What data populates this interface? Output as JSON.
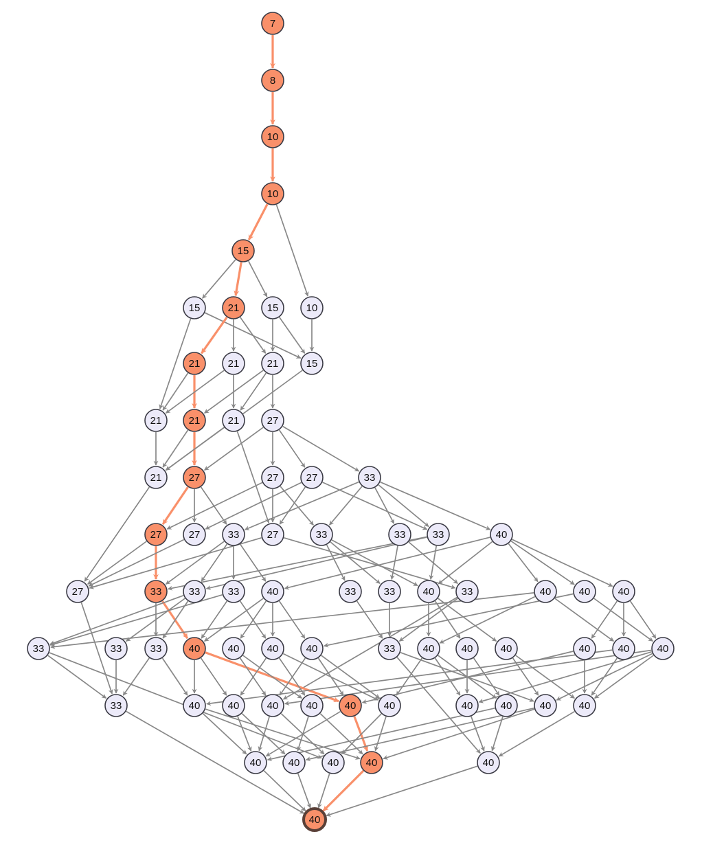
{
  "colors": {
    "highlight_node": "#f9906a",
    "normal_node": "#eceaf9",
    "node_stroke": "#3a3a44",
    "edge": "#888888",
    "highlight_edge": "#f9906a",
    "final_stroke": "#5a4038"
  },
  "nodes": [
    {
      "label": "7",
      "hl": true
    },
    {
      "label": "8",
      "hl": true
    },
    {
      "label": "10",
      "hl": true
    },
    {
      "label": "10",
      "hl": true
    },
    {
      "label": "15",
      "hl": true
    },
    {
      "label": "15"
    },
    {
      "label": "21",
      "hl": true
    },
    {
      "label": "15"
    },
    {
      "label": "10"
    },
    {
      "label": "21",
      "hl": true
    },
    {
      "label": "21"
    },
    {
      "label": "21"
    },
    {
      "label": "15"
    },
    {
      "label": "21"
    },
    {
      "label": "21",
      "hl": true
    },
    {
      "label": "21"
    },
    {
      "label": "27"
    },
    {
      "label": "21"
    },
    {
      "label": "27",
      "hl": true
    },
    {
      "label": "27"
    },
    {
      "label": "27"
    },
    {
      "label": "33"
    },
    {
      "label": "27",
      "hl": true
    },
    {
      "label": "27"
    },
    {
      "label": "33"
    },
    {
      "label": "27"
    },
    {
      "label": "33"
    },
    {
      "label": "33"
    },
    {
      "label": "33"
    },
    {
      "label": "40"
    },
    {
      "label": "27"
    },
    {
      "label": "33",
      "hl": true
    },
    {
      "label": "33"
    },
    {
      "label": "33"
    },
    {
      "label": "40"
    },
    {
      "label": "33"
    },
    {
      "label": "33"
    },
    {
      "label": "40"
    },
    {
      "label": "33"
    },
    {
      "label": "40"
    },
    {
      "label": "40"
    },
    {
      "label": "40"
    },
    {
      "label": "33"
    },
    {
      "label": "33"
    },
    {
      "label": "33"
    },
    {
      "label": "40",
      "hl": true
    },
    {
      "label": "40"
    },
    {
      "label": "40"
    },
    {
      "label": "40"
    },
    {
      "label": "33"
    },
    {
      "label": "40"
    },
    {
      "label": "40"
    },
    {
      "label": "40"
    },
    {
      "label": "40"
    },
    {
      "label": "40"
    },
    {
      "label": "40"
    },
    {
      "label": "33"
    },
    {
      "label": "40"
    },
    {
      "label": "40"
    },
    {
      "label": "40"
    },
    {
      "label": "40"
    },
    {
      "label": "40",
      "hl": true
    },
    {
      "label": "40"
    },
    {
      "label": "40"
    },
    {
      "label": "40"
    },
    {
      "label": "40"
    },
    {
      "label": "40"
    },
    {
      "label": "40"
    },
    {
      "label": "40"
    },
    {
      "label": "40"
    },
    {
      "label": "40",
      "hl": true
    },
    {
      "label": "40"
    },
    {
      "label": "40",
      "hl": true,
      "final": true
    }
  ],
  "edges": [
    [
      0,
      1,
      1
    ],
    [
      1,
      2,
      1
    ],
    [
      2,
      3,
      1
    ],
    [
      3,
      4,
      1
    ],
    [
      3,
      8
    ],
    [
      4,
      5
    ],
    [
      4,
      6,
      1
    ],
    [
      4,
      7
    ],
    [
      5,
      12
    ],
    [
      5,
      13
    ],
    [
      6,
      9,
      1
    ],
    [
      6,
      10
    ],
    [
      6,
      11
    ],
    [
      7,
      11
    ],
    [
      7,
      12
    ],
    [
      8,
      12
    ],
    [
      9,
      14,
      1
    ],
    [
      9,
      13
    ],
    [
      10,
      13
    ],
    [
      10,
      15
    ],
    [
      11,
      14
    ],
    [
      11,
      15
    ],
    [
      11,
      16
    ],
    [
      12,
      17
    ],
    [
      13,
      17
    ],
    [
      14,
      17
    ],
    [
      14,
      18,
      1
    ],
    [
      15,
      17
    ],
    [
      15,
      25
    ],
    [
      16,
      18
    ],
    [
      16,
      19
    ],
    [
      16,
      20
    ],
    [
      16,
      21
    ],
    [
      17,
      30
    ],
    [
      18,
      22,
      1
    ],
    [
      18,
      23
    ],
    [
      18,
      24
    ],
    [
      19,
      22
    ],
    [
      19,
      25
    ],
    [
      19,
      26
    ],
    [
      20,
      23
    ],
    [
      20,
      25
    ],
    [
      20,
      28
    ],
    [
      21,
      24
    ],
    [
      21,
      26
    ],
    [
      21,
      27
    ],
    [
      21,
      28
    ],
    [
      21,
      29
    ],
    [
      22,
      30
    ],
    [
      22,
      31,
      1
    ],
    [
      23,
      30
    ],
    [
      24,
      31
    ],
    [
      24,
      32
    ],
    [
      24,
      33
    ],
    [
      24,
      34
    ],
    [
      25,
      30
    ],
    [
      25,
      38
    ],
    [
      26,
      35
    ],
    [
      26,
      36
    ],
    [
      26,
      37
    ],
    [
      27,
      36
    ],
    [
      27,
      38
    ],
    [
      28,
      31
    ],
    [
      28,
      32
    ],
    [
      28,
      37
    ],
    [
      29,
      34
    ],
    [
      29,
      37
    ],
    [
      29,
      39
    ],
    [
      29,
      40
    ],
    [
      29,
      41
    ],
    [
      30,
      56
    ],
    [
      31,
      44
    ],
    [
      31,
      45,
      1
    ],
    [
      32,
      42
    ],
    [
      32,
      43
    ],
    [
      32,
      44
    ],
    [
      33,
      42
    ],
    [
      33,
      45
    ],
    [
      33,
      47
    ],
    [
      34,
      45
    ],
    [
      34,
      46
    ],
    [
      34,
      47
    ],
    [
      34,
      48
    ],
    [
      35,
      49
    ],
    [
      36,
      49
    ],
    [
      37,
      50
    ],
    [
      37,
      51
    ],
    [
      37,
      52
    ],
    [
      38,
      49
    ],
    [
      38,
      59
    ],
    [
      39,
      42
    ],
    [
      39,
      50
    ],
    [
      39,
      54
    ],
    [
      40,
      48
    ],
    [
      40,
      55
    ],
    [
      41,
      53
    ],
    [
      41,
      54
    ],
    [
      41,
      55
    ],
    [
      42,
      56
    ],
    [
      42,
      69
    ],
    [
      43,
      56
    ],
    [
      44,
      56
    ],
    [
      44,
      57
    ],
    [
      45,
      57
    ],
    [
      45,
      58
    ],
    [
      45,
      61,
      1
    ],
    [
      46,
      59
    ],
    [
      46,
      60
    ],
    [
      47,
      58
    ],
    [
      47,
      60
    ],
    [
      47,
      62
    ],
    [
      48,
      59
    ],
    [
      48,
      61
    ],
    [
      48,
      62
    ],
    [
      49,
      65
    ],
    [
      49,
      71
    ],
    [
      50,
      62
    ],
    [
      50,
      63
    ],
    [
      50,
      64
    ],
    [
      51,
      63
    ],
    [
      51,
      64
    ],
    [
      52,
      65
    ],
    [
      52,
      66
    ],
    [
      53,
      61
    ],
    [
      53,
      66
    ],
    [
      54,
      57
    ],
    [
      54,
      66
    ],
    [
      55,
      59
    ],
    [
      55,
      63
    ],
    [
      55,
      65
    ],
    [
      55,
      66
    ],
    [
      56,
      72
    ],
    [
      57,
      67
    ],
    [
      57,
      70
    ],
    [
      58,
      67
    ],
    [
      58,
      68
    ],
    [
      59,
      67
    ],
    [
      59,
      69
    ],
    [
      60,
      68
    ],
    [
      60,
      70
    ],
    [
      61,
      67
    ],
    [
      61,
      70,
      1
    ],
    [
      62,
      69
    ],
    [
      62,
      70
    ],
    [
      63,
      71
    ],
    [
      64,
      67
    ],
    [
      64,
      71
    ],
    [
      65,
      68
    ],
    [
      65,
      70
    ],
    [
      66,
      71
    ],
    [
      67,
      72
    ],
    [
      68,
      72
    ],
    [
      69,
      72
    ],
    [
      70,
      72,
      1
    ],
    [
      71,
      72
    ]
  ]
}
